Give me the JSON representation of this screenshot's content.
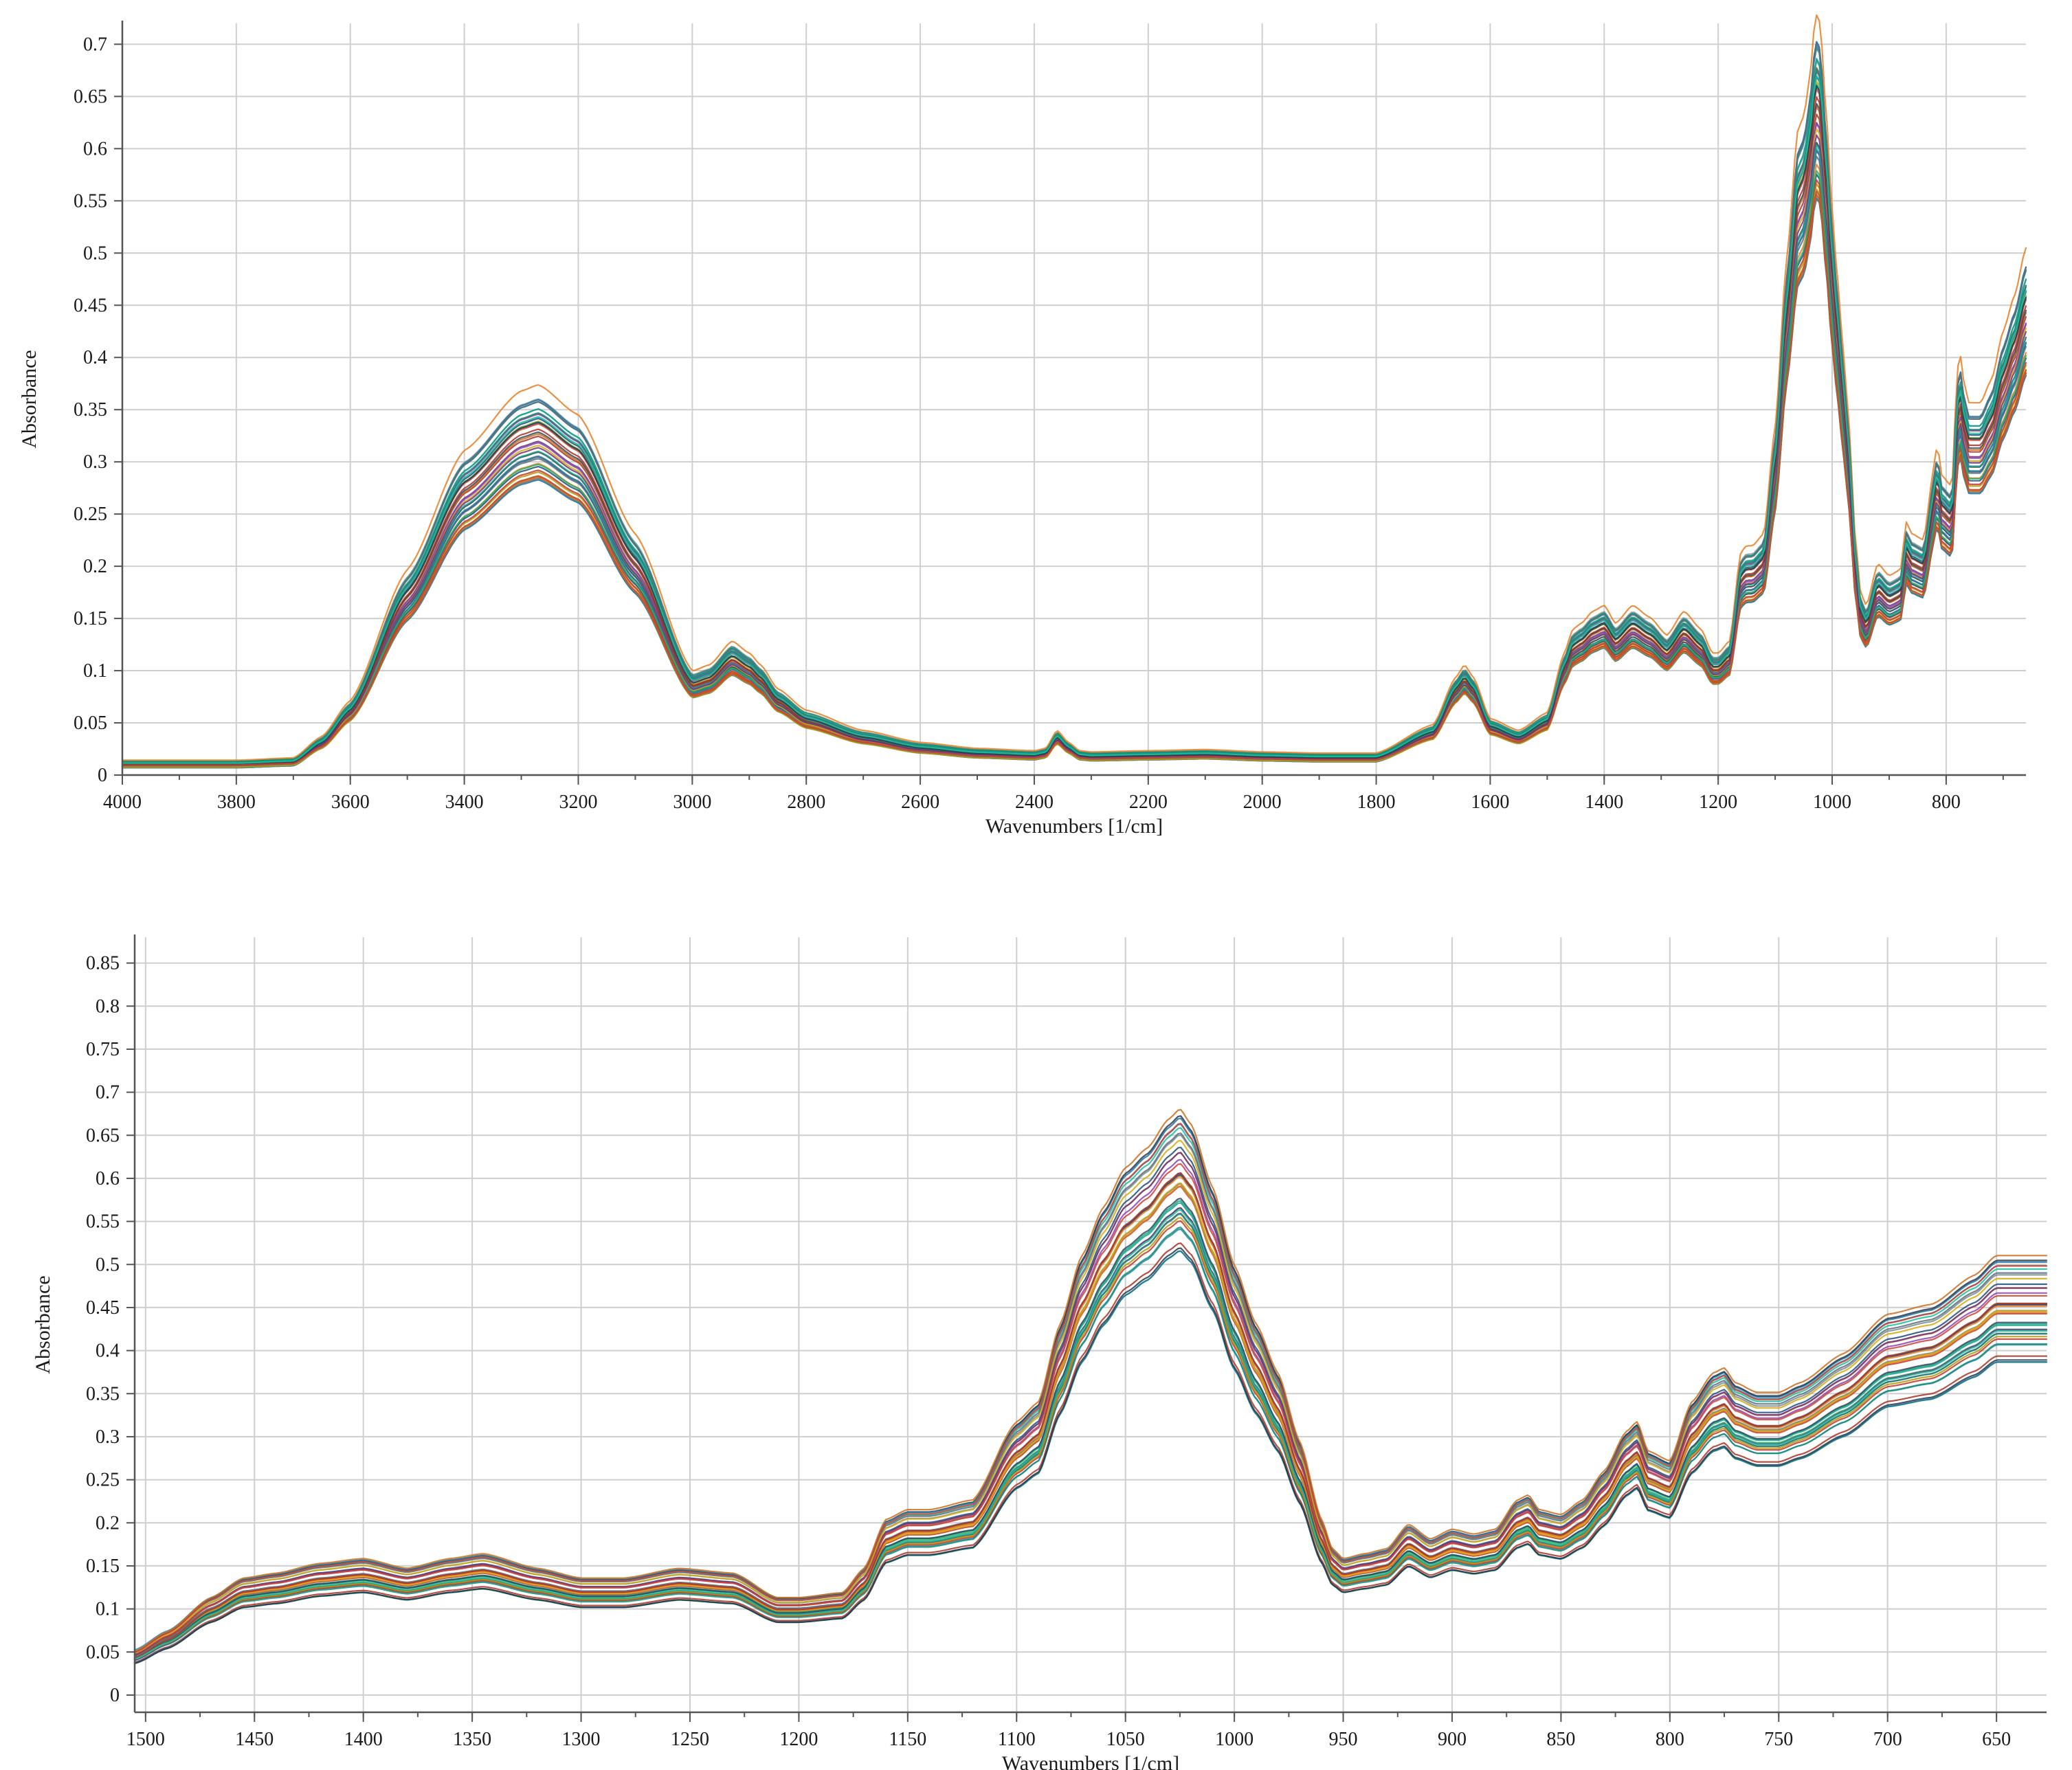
{
  "chart_data": [
    {
      "type": "line",
      "title": "",
      "xlabel": "Wavenumbers [1/cm]",
      "ylabel": "Absorbance",
      "xlim": [
        4000,
        660
      ],
      "ylim": [
        0,
        0.72
      ],
      "x_reversed": true,
      "grid": true,
      "legend": "none",
      "xticks": [
        "4000",
        "3800",
        "3600",
        "3400",
        "3200",
        "3000",
        "2800",
        "2600",
        "2400",
        "2200",
        "2000",
        "1800",
        "1600",
        "1400",
        "1200",
        "1000",
        "800"
      ],
      "yticks": [
        "0",
        "0.05",
        "0.1",
        "0.15",
        "0.2",
        "0.25",
        "0.3",
        "0.35",
        "0.4",
        "0.45",
        "0.5",
        "0.55",
        "0.6",
        "0.65",
        "0.7"
      ],
      "n_series": 40,
      "series_colors": [
        "#1f4e79",
        "#c0392b",
        "#2e86ab",
        "#e67e22",
        "#5d6d7e",
        "#8e44ad",
        "#27ae60",
        "#17a589",
        "#d4ac0d",
        "#7f8c8d",
        "#34495e",
        "#a93226",
        "#2471a3",
        "#ca6f1e",
        "#148f77",
        "#6c3483",
        "#b7950b",
        "#283747",
        "#cb4335",
        "#1abc9c"
      ],
      "representative_spectrum": {
        "x": [
          4000,
          3800,
          3700,
          3650,
          3600,
          3500,
          3400,
          3300,
          3270,
          3200,
          3100,
          3000,
          2970,
          2930,
          2900,
          2880,
          2850,
          2800,
          2700,
          2600,
          2500,
          2400,
          2380,
          2360,
          2340,
          2320,
          2300,
          2200,
          2100,
          2000,
          1900,
          1800,
          1700,
          1660,
          1645,
          1630,
          1600,
          1550,
          1500,
          1470,
          1455,
          1440,
          1420,
          1400,
          1380,
          1350,
          1320,
          1290,
          1260,
          1230,
          1210,
          1200,
          1180,
          1160,
          1150,
          1140,
          1120,
          1100,
          1080,
          1060,
          1050,
          1040,
          1030,
          1025,
          1020,
          1010,
          1000,
          990,
          980,
          970,
          960,
          950,
          940,
          920,
          900,
          880,
          870,
          860,
          840,
          820,
          815,
          810,
          790,
          780,
          775,
          770,
          760,
          740,
          720,
          700,
          680,
          660
        ],
        "y": [
          0.01,
          0.01,
          0.012,
          0.03,
          0.06,
          0.17,
          0.27,
          0.32,
          0.325,
          0.3,
          0.2,
          0.085,
          0.09,
          0.11,
          0.1,
          0.09,
          0.07,
          0.052,
          0.035,
          0.025,
          0.02,
          0.018,
          0.02,
          0.035,
          0.025,
          0.018,
          0.017,
          0.018,
          0.019,
          0.017,
          0.016,
          0.016,
          0.04,
          0.08,
          0.09,
          0.08,
          0.045,
          0.035,
          0.05,
          0.1,
          0.12,
          0.125,
          0.135,
          0.14,
          0.125,
          0.14,
          0.13,
          0.115,
          0.135,
          0.12,
          0.1,
          0.1,
          0.11,
          0.185,
          0.19,
          0.19,
          0.2,
          0.29,
          0.43,
          0.54,
          0.55,
          0.58,
          0.63,
          0.64,
          0.62,
          0.55,
          0.47,
          0.41,
          0.35,
          0.29,
          0.2,
          0.15,
          0.14,
          0.175,
          0.165,
          0.17,
          0.21,
          0.2,
          0.195,
          0.26,
          0.28,
          0.25,
          0.24,
          0.34,
          0.35,
          0.33,
          0.31,
          0.31,
          0.33,
          0.37,
          0.4,
          0.44
        ]
      }
    },
    {
      "type": "line",
      "title": "",
      "xlabel": "Wavenumbers [1/cm]",
      "ylabel": "Absorbance",
      "xlim": [
        1505,
        627
      ],
      "ylim": [
        -0.02,
        0.88
      ],
      "x_reversed": true,
      "grid": true,
      "legend": "none",
      "xticks": [
        "1500",
        "1450",
        "1400",
        "1350",
        "1300",
        "1250",
        "1200",
        "1150",
        "1100",
        "1050",
        "1000",
        "950",
        "900",
        "850",
        "800",
        "750",
        "700",
        "650"
      ],
      "yticks": [
        "0",
        "0.05",
        "0.1",
        "0.15",
        "0.2",
        "0.25",
        "0.3",
        "0.35",
        "0.4",
        "0.45",
        "0.5",
        "0.55",
        "0.6",
        "0.65",
        "0.7",
        "0.75",
        "0.8",
        "0.85"
      ],
      "n_series": 40,
      "series_colors": [
        "#1f4e79",
        "#c0392b",
        "#2e86ab",
        "#e67e22",
        "#5d6d7e",
        "#8e44ad",
        "#27ae60",
        "#17a589",
        "#d4ac0d",
        "#7f8c8d",
        "#34495e",
        "#a93226",
        "#2471a3",
        "#ca6f1e",
        "#148f77",
        "#6c3483",
        "#b7950b",
        "#283747",
        "#cb4335",
        "#1abc9c"
      ],
      "representative_spectrum": {
        "x": [
          1505,
          1490,
          1470,
          1455,
          1440,
          1420,
          1400,
          1380,
          1360,
          1345,
          1320,
          1300,
          1280,
          1255,
          1230,
          1210,
          1200,
          1180,
          1170,
          1160,
          1150,
          1140,
          1120,
          1100,
          1090,
          1080,
          1070,
          1060,
          1050,
          1040,
          1030,
          1025,
          1020,
          1010,
          1000,
          990,
          980,
          970,
          960,
          955,
          950,
          940,
          930,
          920,
          910,
          900,
          890,
          880,
          870,
          865,
          860,
          850,
          840,
          830,
          820,
          815,
          810,
          800,
          790,
          780,
          775,
          770,
          760,
          750,
          740,
          720,
          700,
          680,
          660,
          650
        ],
        "y": [
          0.045,
          0.065,
          0.1,
          0.12,
          0.125,
          0.135,
          0.14,
          0.13,
          0.14,
          0.145,
          0.13,
          0.12,
          0.12,
          0.13,
          0.125,
          0.1,
          0.1,
          0.105,
          0.13,
          0.18,
          0.19,
          0.19,
          0.2,
          0.28,
          0.3,
          0.38,
          0.45,
          0.5,
          0.54,
          0.56,
          0.59,
          0.6,
          0.585,
          0.52,
          0.44,
          0.38,
          0.33,
          0.26,
          0.18,
          0.15,
          0.14,
          0.145,
          0.15,
          0.175,
          0.16,
          0.17,
          0.165,
          0.17,
          0.2,
          0.205,
          0.19,
          0.185,
          0.2,
          0.23,
          0.27,
          0.28,
          0.25,
          0.24,
          0.3,
          0.33,
          0.335,
          0.32,
          0.31,
          0.31,
          0.32,
          0.35,
          0.39,
          0.4,
          0.43,
          0.45
        ]
      }
    }
  ]
}
